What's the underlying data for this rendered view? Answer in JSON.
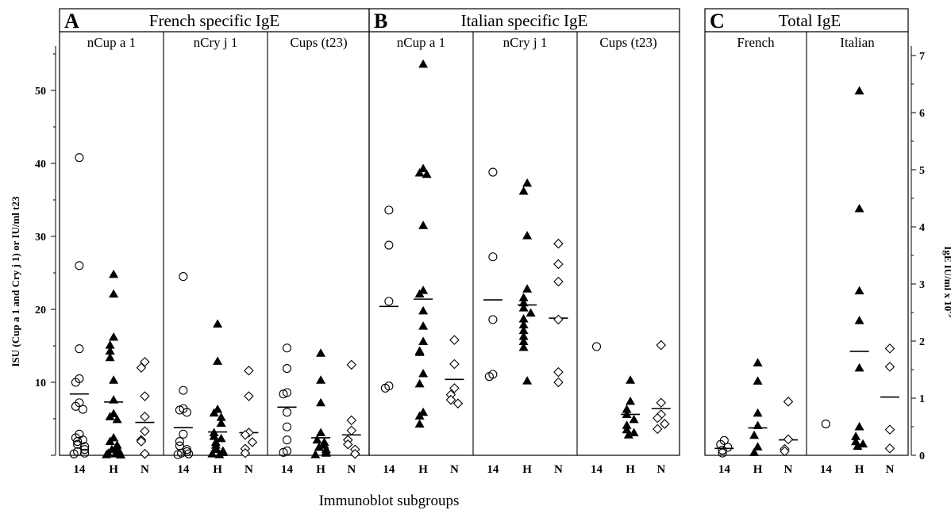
{
  "chart_data": {
    "type": "scatter",
    "xlabel": "Immunoblot subgroups",
    "ylabel_left": "ISU (Cup a 1 and Cry j 1) or IU/ml t23",
    "ylabel_right": "IgE IU/ml x 10",
    "ylabel_right_exp": "-3",
    "ylim_left": [
      0,
      55
    ],
    "ylim_right": [
      0,
      7
    ],
    "left_ticks": [
      "10",
      "20",
      "30",
      "40",
      "50"
    ],
    "right_ticks": [
      "0",
      "1",
      "2",
      "3",
      "4",
      "5",
      "6",
      "7"
    ],
    "groups": [
      "14",
      "H",
      "N"
    ],
    "panels": [
      {
        "letter": "A",
        "title": "French specific IgE",
        "axis": "left",
        "subpanels": [
          {
            "label": "nCup a 1",
            "series": [
              {
                "group": "14",
                "marker": "circle",
                "median": 8.4,
                "values": [
                  40.8,
                  26,
                  14.6,
                  10.5,
                  10,
                  7.2,
                  6.7,
                  6.3,
                  2.9,
                  2.4,
                  2.1,
                  1.9,
                  1.5,
                  1.2,
                  0.8,
                  0.5,
                  0.3,
                  0.2
                ]
              },
              {
                "group": "H",
                "marker": "triangle",
                "median": 7.3,
                "values": [
                  24.8,
                  22.1,
                  16.2,
                  15.1,
                  14.3,
                  13.4,
                  10.3,
                  7.6,
                  5.7,
                  5.3,
                  4.9,
                  2.4,
                  1.9,
                  1.4,
                  1.0,
                  0.8,
                  0.6,
                  0.4,
                  0.3,
                  0.2,
                  0.1,
                  0.05
                ]
              },
              {
                "group": "N",
                "marker": "diamond",
                "median": 4.5,
                "values": [
                  12.8,
                  12,
                  8.1,
                  5.3,
                  3.3,
                  2.1,
                  1.9,
                  0.2
                ]
              }
            ]
          },
          {
            "label": "nCry j 1",
            "series": [
              {
                "group": "14",
                "marker": "circle",
                "median": 3.8,
                "values": [
                  24.5,
                  8.9,
                  6.4,
                  6.2,
                  5.9,
                  2.9,
                  1.9,
                  1.3,
                  0.8,
                  0.5,
                  0.3,
                  0.2,
                  0.1
                ]
              },
              {
                "group": "H",
                "marker": "triangle",
                "median": 3.2,
                "values": [
                  18,
                  12.9,
                  6.3,
                  5.8,
                  5.2,
                  4.4,
                  3.1,
                  2.6,
                  2.3,
                  1.8,
                  1.4,
                  1.0,
                  0.8,
                  0.6,
                  0.4,
                  0.2,
                  0.1
                ]
              },
              {
                "group": "N",
                "marker": "diamond",
                "median": 3.1,
                "values": [
                  11.6,
                  8.1,
                  3.1,
                  2.8,
                  1.8,
                  0.9,
                  0.3
                ]
              }
            ]
          },
          {
            "label": "Cups (t23)",
            "series": [
              {
                "group": "14",
                "marker": "circle",
                "median": 6.6,
                "values": [
                  14.7,
                  11.9,
                  8.6,
                  8.4,
                  5.9,
                  3.9,
                  2.1,
                  0.6,
                  0.4
                ]
              },
              {
                "group": "H",
                "marker": "triangle",
                "median": 2.4,
                "values": [
                  14,
                  10.3,
                  7.2,
                  3.1,
                  2.1,
                  1.8,
                  1.4,
                  1.1,
                  0.8,
                  0.5,
                  0.3,
                  0.1
                ]
              },
              {
                "group": "N",
                "marker": "diamond",
                "median": 2.8,
                "values": [
                  12.4,
                  4.8,
                  3.4,
                  2.1,
                  1.5,
                  0.8,
                  0.2
                ]
              }
            ]
          }
        ]
      },
      {
        "letter": "B",
        "title": "Italian specific IgE",
        "axis": "left",
        "subpanels": [
          {
            "label": "nCup a 1",
            "series": [
              {
                "group": "14",
                "marker": "circle",
                "median": 20.4,
                "values": [
                  33.6,
                  28.8,
                  21.1,
                  9.5,
                  9.2
                ]
              },
              {
                "group": "H",
                "marker": "triangle",
                "median": 21.4,
                "values": [
                  53.6,
                  39.3,
                  38.7,
                  38.5,
                  31.5,
                  22.6,
                  22.1,
                  19.8,
                  17.7,
                  15.6,
                  14.3,
                  14.1,
                  11.2,
                  9.8,
                  5.9,
                  5.4,
                  4.3
                ]
              },
              {
                "group": "N",
                "marker": "diamond",
                "median": 10.4,
                "values": [
                  15.8,
                  12.5,
                  9.2,
                  8.3,
                  7.6,
                  7.1
                ]
              }
            ]
          },
          {
            "label": "nCry j 1",
            "series": [
              {
                "group": "14",
                "marker": "circle",
                "median": 21.3,
                "values": [
                  38.8,
                  27.2,
                  18.6,
                  11.1,
                  10.8
                ]
              },
              {
                "group": "H",
                "marker": "triangle",
                "median": 20.6,
                "values": [
                  37.3,
                  36.2,
                  30.1,
                  22.8,
                  21.6,
                  20.9,
                  20.2,
                  19.5,
                  18.7,
                  17.9,
                  17.1,
                  16.3,
                  15.6,
                  14.8,
                  10.2
                ]
              },
              {
                "group": "N",
                "marker": "diamond",
                "median": 18.8,
                "values": [
                  29,
                  26.2,
                  23.8,
                  18.6,
                  11.4,
                  10
                ]
              }
            ]
          },
          {
            "label": "Cups (t23)",
            "series": [
              {
                "group": "14",
                "marker": "circle",
                "median": null,
                "values": [
                  14.9
                ]
              },
              {
                "group": "H",
                "marker": "triangle",
                "median": 5.6,
                "values": [
                  10.3,
                  7.4,
                  6.3,
                  5.6,
                  4.9,
                  4.1,
                  3.5,
                  3.1,
                  2.8
                ]
              },
              {
                "group": "N",
                "marker": "diamond",
                "median": 6.4,
                "values": [
                  15.1,
                  7.2,
                  5.6,
                  5.1,
                  4.3,
                  3.6
                ]
              }
            ]
          }
        ]
      },
      {
        "letter": "C",
        "title": "Total IgE",
        "axis": "right",
        "subpanels": [
          {
            "label": "French",
            "series": [
              {
                "group": "14",
                "marker": "circle",
                "median": 0.12,
                "values": [
                  0.26,
                  0.19,
                  0.14,
                  0.09,
                  0.04
                ]
              },
              {
                "group": "H",
                "marker": "triangle",
                "median": 0.48,
                "values": [
                  1.62,
                  1.3,
                  0.74,
                  0.52,
                  0.35,
                  0.15,
                  0.05
                ]
              },
              {
                "group": "N",
                "marker": "diamond",
                "median": 0.27,
                "values": [
                  0.94,
                  0.28,
                  0.11,
                  0.07
                ]
              }
            ]
          },
          {
            "label": "Italian",
            "series": [
              {
                "group": "14",
                "marker": "circle",
                "median": null,
                "values": [
                  0.55
                ]
              },
              {
                "group": "H",
                "marker": "triangle",
                "median": 1.82,
                "values": [
                  6.38,
                  4.32,
                  2.88,
                  2.36,
                  1.53,
                  0.5,
                  0.33,
                  0.24,
                  0.2,
                  0.16
                ]
              },
              {
                "group": "N",
                "marker": "diamond",
                "median": 1.02,
                "values": [
                  1.87,
                  1.55,
                  0.45,
                  0.12
                ]
              }
            ]
          }
        ]
      }
    ]
  }
}
